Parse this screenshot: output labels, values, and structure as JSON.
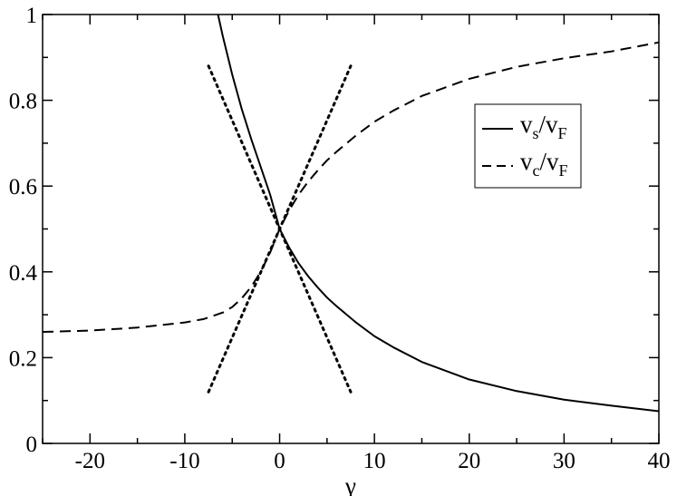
{
  "chart_data": {
    "type": "line",
    "title": "",
    "xlabel": "γ",
    "ylabel": "",
    "xlim": [
      -25,
      40
    ],
    "ylim": [
      0,
      1
    ],
    "xticks": [
      -20,
      -10,
      0,
      10,
      20,
      30,
      40
    ],
    "xtick_labels": [
      "-20",
      "-10",
      "0",
      "10",
      "20",
      "30",
      "40"
    ],
    "yticks": [
      0,
      0.2,
      0.4,
      0.6,
      0.8,
      1
    ],
    "ytick_labels": [
      "0",
      "0.2",
      "0.4",
      "0.6",
      "0.8",
      "1"
    ],
    "grid": false,
    "legend_position": "top-right",
    "series": [
      {
        "name": "v_s/v_F",
        "legend": {
          "v1": "v",
          "s1": "s",
          "mid": "/v",
          "s2": "F"
        },
        "style": "solid",
        "x": [
          -6.5,
          -6,
          -5,
          -4,
          -3,
          -2,
          -1,
          0,
          1,
          2,
          3,
          4,
          5,
          6,
          8,
          10,
          12,
          15,
          20,
          25,
          30,
          35,
          40
        ],
        "y": [
          1.0,
          0.95,
          0.86,
          0.78,
          0.71,
          0.645,
          0.58,
          0.5,
          0.457,
          0.42,
          0.39,
          0.364,
          0.34,
          0.32,
          0.283,
          0.25,
          0.224,
          0.19,
          0.149,
          0.122,
          0.102,
          0.088,
          0.075
        ]
      },
      {
        "name": "v_c/v_F",
        "legend": {
          "v1": "v",
          "s1": "c",
          "mid": "/v",
          "s2": "F"
        },
        "style": "dashed",
        "x": [
          -25,
          -20,
          -15,
          -10,
          -8,
          -6,
          -5,
          -4,
          -3,
          -2,
          -1,
          0,
          1,
          2,
          3,
          4,
          5,
          6,
          8,
          10,
          12,
          15,
          20,
          25,
          30,
          35,
          40
        ],
        "y": [
          0.26,
          0.263,
          0.27,
          0.282,
          0.29,
          0.305,
          0.318,
          0.338,
          0.365,
          0.4,
          0.445,
          0.5,
          0.543,
          0.58,
          0.61,
          0.636,
          0.66,
          0.68,
          0.717,
          0.75,
          0.776,
          0.81,
          0.85,
          0.878,
          0.898,
          0.914,
          0.935
        ]
      },
      {
        "name": "",
        "style": "dotted",
        "x": [
          -7.5,
          7.5
        ],
        "y": [
          0.88,
          0.12
        ]
      },
      {
        "name": "",
        "style": "dotted",
        "x": [
          -7.5,
          7.5
        ],
        "y": [
          0.12,
          0.88
        ]
      }
    ]
  }
}
